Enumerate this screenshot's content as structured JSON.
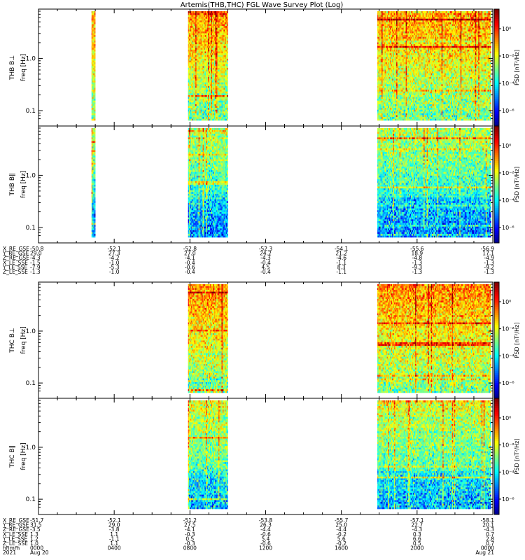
{
  "title": "Artemis(THB,THC) FGL Wave Survey Plot (Log)",
  "chart_data": {
    "type": "heatmap",
    "title": "Artemis(THB,THC) FGL Wave Survey Plot (Log)",
    "x_range": [
      "2021-08-20 00:00",
      "2021-08-21 00:00"
    ],
    "x_tick_labels": [
      "0000",
      "0400",
      "0800",
      "1200",
      "1600",
      "2000",
      "0000"
    ],
    "x_tick_hours": [
      0,
      4,
      8,
      12,
      16,
      20,
      24
    ],
    "x_date_labels": [
      "Aug 20",
      "Aug 21"
    ],
    "y_scale": "log",
    "y_tick_labels": [
      "1.0",
      "0.1"
    ],
    "y_range": [
      0.065,
      8
    ],
    "colorbar": {
      "label": "PSD [nT²/Hz]",
      "scale": "log",
      "tick_labels": [
        "10⁰",
        "10⁻²",
        "10⁻⁴",
        "10⁻⁶"
      ]
    },
    "panels": [
      {
        "id": "thb-bperp",
        "probe": "THB",
        "ylabel_probe": "THB B⊥",
        "ylabel_freq": "freq [Hz]",
        "data_intervals_hours": [
          [
            2.8,
            3.0
          ],
          [
            7.9,
            10.0
          ],
          [
            17.9,
            23.9
          ]
        ],
        "level": 0.62
      },
      {
        "id": "thb-bpar",
        "probe": "THB",
        "ylabel_probe": "THB B∥",
        "ylabel_freq": "freq [Hz]",
        "data_intervals_hours": [
          [
            2.8,
            3.0
          ],
          [
            7.9,
            10.0
          ],
          [
            17.9,
            23.9
          ]
        ],
        "level": 0.45
      },
      {
        "id": "thc-bperp",
        "probe": "THC",
        "ylabel_probe": "THC B⊥",
        "ylabel_freq": "freq [Hz]",
        "data_intervals_hours": [
          [
            7.9,
            10.0
          ],
          [
            17.9,
            23.9
          ]
        ],
        "level": 0.64
      },
      {
        "id": "thc-bpar",
        "probe": "THC",
        "ylabel_probe": "THC B∥",
        "ylabel_freq": "freq [Hz]",
        "data_intervals_hours": [
          [
            7.9,
            10.0
          ],
          [
            17.9,
            23.9
          ]
        ],
        "level": 0.5
      }
    ],
    "ephemeris": [
      {
        "probe": "THB",
        "labels": [
          "X_RE_GSE",
          "Y_RE_GSE",
          "Z_RE_GSE",
          "X_LE_SSE",
          "Y_LE_SSE",
          "Z_LE_SSE"
        ],
        "values": [
          [
            "-50.8",
            "29.0",
            "-4.3",
            "-1.5",
            "-7.9",
            "-1.3"
          ],
          [
            "-52.1",
            "27.3",
            "-4.2",
            "-1.0",
            "-5.3",
            "-1.0"
          ],
          [
            "-52.8",
            "27.0",
            "-4.1",
            "-0.4",
            "-0.6",
            "-0.4"
          ],
          [
            "-52.3",
            "24.2",
            "-4.3",
            "-0.4",
            "4.5",
            "-0.4"
          ],
          [
            "-54.1",
            "21.2",
            "-4.6",
            "-1.1",
            "8.3",
            "-1.1"
          ],
          [
            "-55.6",
            "18.9",
            "-4.8",
            "-1.3",
            "-9.3",
            "-1.3"
          ],
          [
            "-56.9",
            "17.1",
            "-4.9",
            "-1.3",
            "-9.2",
            "-1.3"
          ]
        ]
      },
      {
        "probe": "THC",
        "labels": [
          "X_RE_GSE",
          "Y_RE_GSE",
          "Z_RE_GSE",
          "X_LE_SSE",
          "Y_LE_SSE",
          "Z_LE_SSE"
        ],
        "values": [
          [
            "-51.7",
            "31.5",
            "-3.5",
            "1.3",
            "1.2",
            "1.0"
          ],
          [
            "-52.1",
            "29.0",
            "-3.8",
            "1.1",
            "-1.1",
            "1.1"
          ],
          [
            "-51.2",
            "27.5",
            "-4.1",
            "-0.3",
            "0.5",
            "-0.3"
          ],
          [
            "-53.8",
            "26.3",
            "-4.4",
            "-0.6",
            "5.4",
            "-0.6"
          ],
          [
            "-55.7",
            "25.0",
            "-4.4",
            "-0.2",
            "5.6",
            "-0.2"
          ],
          [
            "-57.1",
            "22.7",
            "-4.3",
            "0.3",
            "6.6",
            "0.5"
          ],
          [
            "-58.1",
            "20.1",
            "-4.3",
            "0.7",
            "2.8",
            "0.7"
          ]
        ]
      }
    ],
    "time_rows": [
      {
        "label": "hhmm",
        "values": [
          "0000",
          "0400",
          "0800",
          "1200",
          "1600",
          "2000",
          "0000"
        ]
      },
      {
        "label": "2021",
        "values": [
          "Aug 20",
          "",
          "",
          "",
          "",
          "",
          "Aug 21"
        ]
      }
    ]
  }
}
